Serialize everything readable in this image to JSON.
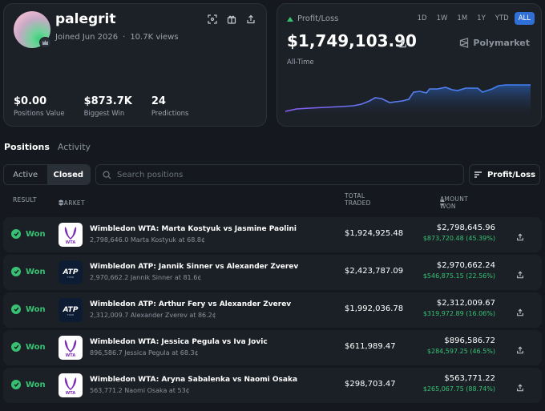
{
  "profile": {
    "username": "palegrit",
    "joined": "Joined Jun 2026",
    "separator": "·",
    "views": "10.7K views",
    "stats": [
      {
        "value": "$0.00",
        "label": "Positions Value"
      },
      {
        "value": "$873.7K",
        "label": "Biggest Win"
      },
      {
        "value": "24",
        "label": "Predictions"
      }
    ]
  },
  "pnl": {
    "label": "Profit/Loss",
    "value": "$1,749,103.90",
    "ranges": [
      "1D",
      "1W",
      "1M",
      "1Y",
      "YTD",
      "ALL"
    ],
    "active_range": "ALL",
    "brand": "Polymarket",
    "period": "All-Time",
    "colors": {
      "line_start": "#8b5cf6",
      "line_end": "#3b82f6",
      "fill": "#1e3a66"
    }
  },
  "tabs": [
    {
      "label": "Positions",
      "active": true
    },
    {
      "label": "Activity",
      "active": false
    }
  ],
  "filters": {
    "active_label": "Active",
    "closed_label": "Closed",
    "search_placeholder": "Search positions",
    "pl_button": "Profit/Loss"
  },
  "table": {
    "headers": {
      "result": "RESULT",
      "market": "MARKET",
      "traded": "TOTAL TRADED",
      "won": "AMOUNT WON"
    },
    "rows": [
      {
        "result": "Won",
        "logo": "WTA",
        "title": "Wimbledon WTA: Marta Kostyuk vs Jasmine Paolini",
        "sub": "2,798,646.0 Marta Kostyuk at 68.8¢",
        "traded": "$1,924,925.48",
        "won": "$2,798,645.96",
        "profit": "$873,720.48 (45.39%)"
      },
      {
        "result": "Won",
        "logo": "ATP",
        "title": "Wimbledon ATP: Jannik Sinner vs Alexander Zverev",
        "sub": "2,970,662.2 Jannik Sinner at 81.6¢",
        "traded": "$2,423,787.09",
        "won": "$2,970,662.24",
        "profit": "$546,875.15 (22.56%)"
      },
      {
        "result": "Won",
        "logo": "ATP",
        "title": "Wimbledon ATP: Arthur Fery vs Alexander Zverev",
        "sub": "2,312,009.7 Alexander Zverev at 86.2¢",
        "traded": "$1,992,036.78",
        "won": "$2,312,009.67",
        "profit": "$319,972.89 (16.06%)"
      },
      {
        "result": "Won",
        "logo": "WTA",
        "title": "Wimbledon WTA: Jessica Pegula vs Iva Jovic",
        "sub": "896,586.7 Jessica Pegula at 68.3¢",
        "traded": "$611,989.47",
        "won": "$896,586.72",
        "profit": "$284,597.25 (46.5%)"
      },
      {
        "result": "Won",
        "logo": "WTA",
        "title": "Wimbledon WTA: Aryna Sabalenka vs Naomi Osaka",
        "sub": "563,771.2 Naomi Osaka at 53¢",
        "traded": "$298,703.47",
        "won": "$563,771.22",
        "profit": "$265,067.75 (88.74%)"
      }
    ]
  },
  "colors": {
    "green": "#38c172",
    "accent": "#2f6fd6",
    "bg": "#15191f",
    "card": "#1c2128"
  }
}
